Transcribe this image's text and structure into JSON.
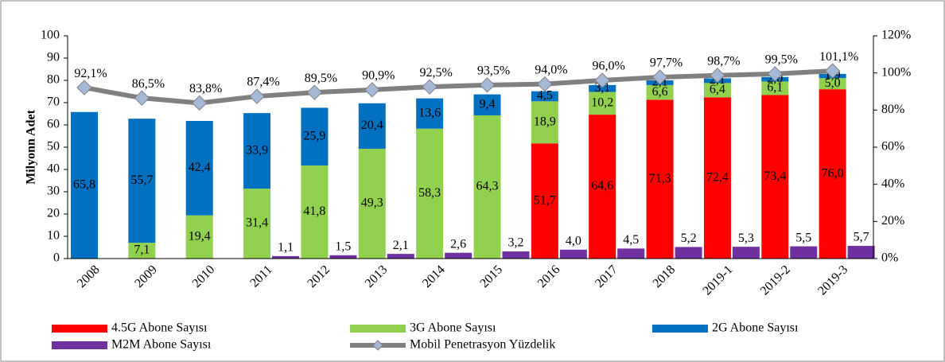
{
  "chart_data": {
    "type": "bar",
    "categories": [
      "2008",
      "2009",
      "2010",
      "2011",
      "2012",
      "2013",
      "2014",
      "2015",
      "2016",
      "2017",
      "2018",
      "2019-1",
      "2019-2",
      "2019-3"
    ],
    "ylabel": "Milyonn Adet",
    "ylim": [
      0,
      100
    ],
    "yticks": [
      0,
      10,
      20,
      30,
      40,
      50,
      60,
      70,
      80,
      90,
      100
    ],
    "y2lim": [
      0,
      120
    ],
    "y2ticks": [
      {
        "value": 0,
        "label": "0%"
      },
      {
        "value": 20,
        "label": "20%"
      },
      {
        "value": 40,
        "label": "40%"
      },
      {
        "value": 60,
        "label": "60%"
      },
      {
        "value": 80,
        "label": "80%"
      },
      {
        "value": 100,
        "label": "100%"
      },
      {
        "value": 120,
        "label": "120%"
      }
    ],
    "series": [
      {
        "name": "4.5G Abone Sayısı",
        "color": "#ff0000",
        "stacked": true,
        "values": [
          null,
          null,
          null,
          null,
          null,
          null,
          null,
          null,
          51.7,
          64.6,
          71.3,
          72.4,
          73.4,
          76.0
        ],
        "value_labels": [
          null,
          null,
          null,
          null,
          null,
          null,
          null,
          null,
          "51,7",
          "64,6",
          "71,3",
          "72,4",
          "73,4",
          "76,0"
        ]
      },
      {
        "name": "3G Abone Sayısı",
        "color": "#92d050",
        "stacked": true,
        "values": [
          null,
          7.1,
          19.4,
          31.4,
          41.8,
          49.3,
          58.3,
          64.3,
          18.9,
          10.2,
          6.6,
          6.4,
          6.1,
          5.0
        ],
        "value_labels": [
          null,
          "7,1",
          "19,4",
          "31,4",
          "41,8",
          "49,3",
          "58,3",
          "64,3",
          "18,9",
          "10,2",
          "6,6",
          "6,4",
          "6,1",
          "5,0"
        ]
      },
      {
        "name": "2G Abone Sayısı",
        "color": "#0070c0",
        "stacked": true,
        "values": [
          65.8,
          55.7,
          42.4,
          33.9,
          25.9,
          20.4,
          13.6,
          9.4,
          4.5,
          3.1,
          2.1,
          2.1,
          2.0,
          1.9
        ],
        "value_labels": [
          "65,8",
          "55,7",
          "42,4",
          "33,9",
          "25,9",
          "20,4",
          "13,6",
          "9,4",
          "4,5",
          "3,1",
          "2,1",
          "2,1",
          "2,0",
          "1,9"
        ]
      },
      {
        "name": "M2M Abone Sayısı",
        "color": "#7030a0",
        "values": [
          null,
          null,
          null,
          1.1,
          1.5,
          2.1,
          2.6,
          3.2,
          4.0,
          4.5,
          5.2,
          5.3,
          5.5,
          5.7
        ],
        "value_labels": [
          null,
          null,
          null,
          "1,1",
          "1,5",
          "2,1",
          "2,6",
          "3,2",
          "4,0",
          "4,5",
          "5,2",
          "5,3",
          "5,5",
          "5,7"
        ]
      },
      {
        "name": "Mobil Penetrasyon Yüzdelik",
        "color": "#808080",
        "type": "line",
        "axis": "y2",
        "marker_color": "#a6b8d8",
        "values": [
          92.1,
          86.5,
          83.8,
          87.4,
          89.5,
          90.9,
          92.5,
          93.5,
          94.0,
          96.0,
          97.7,
          98.7,
          99.5,
          101.1
        ],
        "value_labels": [
          "92,1%",
          "86,5%",
          "83,8%",
          "87,4%",
          "89,5%",
          "90,9%",
          "92,5%",
          "93,5%",
          "94,0%",
          "96,0%",
          "97,7%",
          "98,7%",
          "99,5%",
          "101,1%"
        ]
      }
    ]
  }
}
